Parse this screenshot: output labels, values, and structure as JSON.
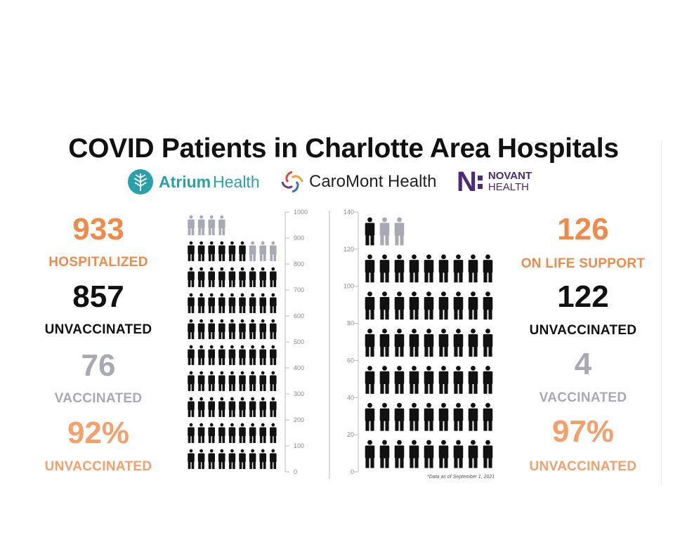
{
  "title": "COVID Patients in Charlotte Area Hospitals",
  "logos": {
    "atrium_bold": "Atrium",
    "atrium_light": "Health",
    "caromont": "CaroMont Health",
    "novant_mark": "N",
    "novant_top": "NOVANT",
    "novant_bottom": "HEALTH"
  },
  "left_stats": {
    "total_value": "933",
    "total_label": "HOSPITALIZED",
    "unvax_value": "857",
    "unvax_label": "UNVACCINATED",
    "vax_value": "76",
    "vax_label": "VACCINATED",
    "pct_value": "92%",
    "pct_label": "UNVACCINATED"
  },
  "right_stats": {
    "total_value": "126",
    "total_label": "ON LIFE SUPPORT",
    "unvax_value": "122",
    "unvax_label": "UNVACCINATED",
    "vax_value": "4",
    "vax_label": "VACCINATED",
    "pct_value": "97%",
    "pct_label": "UNVACCINATED"
  },
  "footnote": "*Data as of September 1, 2021",
  "colors": {
    "orange": "#f08a4b",
    "unvaccinated": "#111111",
    "vaccinated": "#a9a9b3"
  },
  "chart_data": [
    {
      "type": "pictograph",
      "title": "HOSPITALIZED",
      "ylim": [
        0,
        1000
      ],
      "y_ticks": [
        0,
        100,
        200,
        300,
        400,
        500,
        600,
        700,
        800,
        900,
        1000
      ],
      "series": [
        {
          "name": "UNVACCINATED",
          "values": [
            857
          ]
        },
        {
          "name": "VACCINATED",
          "values": [
            76
          ]
        }
      ],
      "total": 933,
      "icon_rows": [
        {
          "unvaccinated": 9,
          "vaccinated": 0
        },
        {
          "unvaccinated": 9,
          "vaccinated": 0
        },
        {
          "unvaccinated": 9,
          "vaccinated": 0
        },
        {
          "unvaccinated": 9,
          "vaccinated": 0
        },
        {
          "unvaccinated": 9,
          "vaccinated": 0
        },
        {
          "unvaccinated": 9,
          "vaccinated": 0
        },
        {
          "unvaccinated": 9,
          "vaccinated": 0
        },
        {
          "unvaccinated": 9,
          "vaccinated": 0
        },
        {
          "unvaccinated": 6,
          "vaccinated": 3
        },
        {
          "unvaccinated": 0,
          "vaccinated": 4
        }
      ]
    },
    {
      "type": "pictograph",
      "title": "ON LIFE SUPPORT",
      "ylim": [
        0,
        140
      ],
      "y_ticks": [
        0,
        20,
        40,
        60,
        80,
        100,
        120,
        140
      ],
      "series": [
        {
          "name": "UNVACCINATED",
          "values": [
            122
          ]
        },
        {
          "name": "VACCINATED",
          "values": [
            4
          ]
        }
      ],
      "total": 126,
      "icon_rows": [
        {
          "unvaccinated": 9,
          "vaccinated": 0
        },
        {
          "unvaccinated": 9,
          "vaccinated": 0
        },
        {
          "unvaccinated": 9,
          "vaccinated": 0
        },
        {
          "unvaccinated": 9,
          "vaccinated": 0
        },
        {
          "unvaccinated": 9,
          "vaccinated": 0
        },
        {
          "unvaccinated": 9,
          "vaccinated": 0
        },
        {
          "unvaccinated": 1,
          "vaccinated": 2
        }
      ]
    }
  ]
}
